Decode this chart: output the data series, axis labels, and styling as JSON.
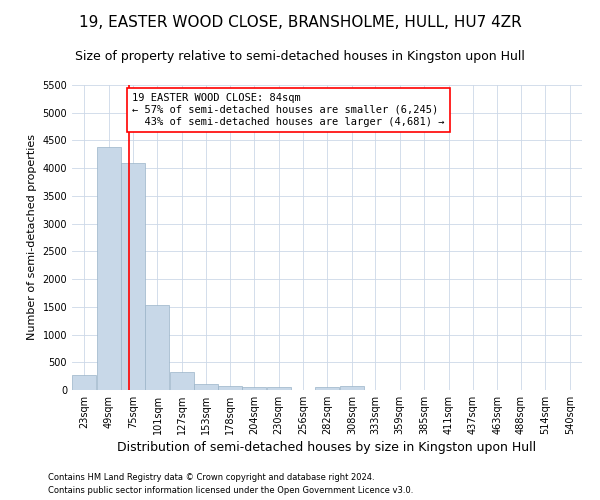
{
  "title": "19, EASTER WOOD CLOSE, BRANSHOLME, HULL, HU7 4ZR",
  "subtitle": "Size of property relative to semi-detached houses in Kingston upon Hull",
  "xlabel": "Distribution of semi-detached houses by size in Kingston upon Hull",
  "ylabel": "Number of semi-detached properties",
  "footnote1": "Contains HM Land Registry data © Crown copyright and database right 2024.",
  "footnote2": "Contains public sector information licensed under the Open Government Licence v3.0.",
  "bar_color": "#c8d8e8",
  "bar_edge_color": "#9ab4c8",
  "grid_color": "#ccd8e8",
  "property_label": "19 EASTER WOOD CLOSE: 84sqm",
  "pct_smaller": 57,
  "count_smaller": 6245,
  "pct_larger": 43,
  "count_larger": 4681,
  "bin_labels": [
    "23sqm",
    "49sqm",
    "75sqm",
    "101sqm",
    "127sqm",
    "153sqm",
    "178sqm",
    "204sqm",
    "230sqm",
    "256sqm",
    "282sqm",
    "308sqm",
    "333sqm",
    "359sqm",
    "385sqm",
    "411sqm",
    "437sqm",
    "463sqm",
    "488sqm",
    "514sqm",
    "540sqm"
  ],
  "bin_left_edges": [
    23,
    49,
    75,
    101,
    127,
    153,
    178,
    204,
    230,
    256,
    282,
    308,
    333,
    359,
    385,
    411,
    437,
    463,
    488,
    514,
    540
  ],
  "bar_heights": [
    270,
    4380,
    4100,
    1530,
    325,
    110,
    75,
    60,
    55,
    0,
    50,
    75,
    0,
    0,
    0,
    0,
    0,
    0,
    0,
    0,
    0
  ],
  "ylim": [
    0,
    5500
  ],
  "yticks": [
    0,
    500,
    1000,
    1500,
    2000,
    2500,
    3000,
    3500,
    4000,
    4500,
    5000,
    5500
  ],
  "red_line_x": 84,
  "title_fontsize": 11,
  "subtitle_fontsize": 9,
  "ylabel_fontsize": 8,
  "xlabel_fontsize": 9,
  "tick_fontsize": 7,
  "footnote_fontsize": 6,
  "annotation_fontsize": 7.5
}
